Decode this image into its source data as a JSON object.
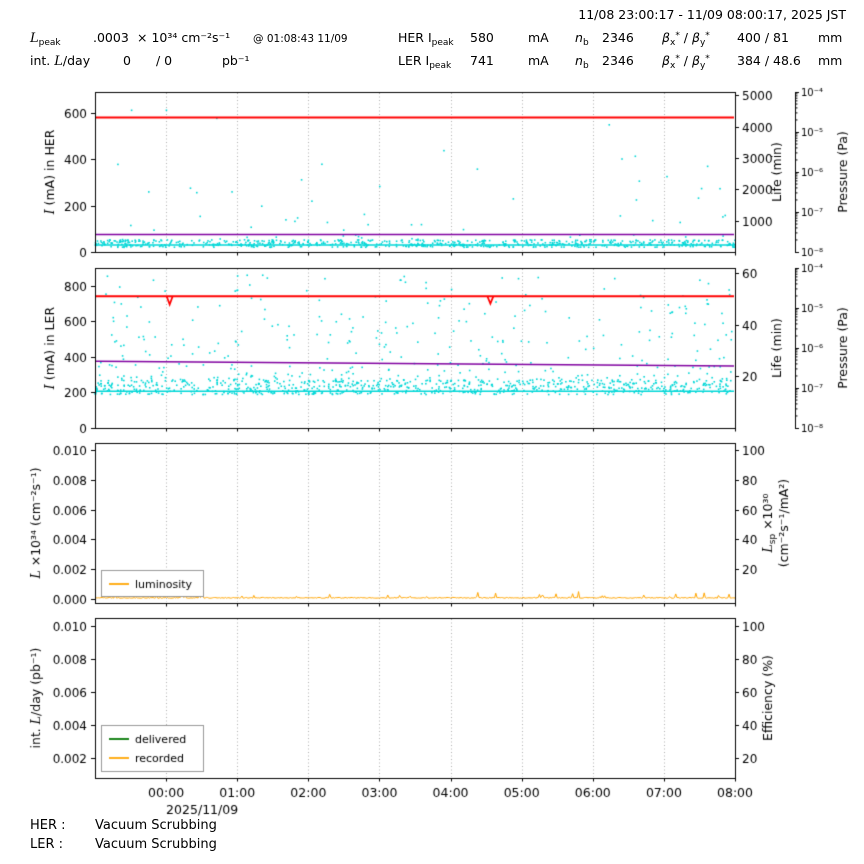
{
  "title": "11/08 23:00:17 - 11/09 08:00:17, 2025 JST",
  "header": {
    "script_l": "L",
    "sub_peak": "peak",
    "lpeak": {
      "value": ".0003",
      "unit": "× 10³⁴ cm⁻²s⁻¹",
      "at": "@ 01:08:43 11/09"
    },
    "intlum": {
      "label_pre": "int. ",
      "label_post": "/day",
      "value": "0",
      "value2": "/ 0",
      "unit": "pb⁻¹"
    },
    "nb_sym": "n",
    "sub_b": "b",
    "beta_sym": "β",
    "beta_x": "x",
    "beta_y": "y",
    "beta_star": "*",
    "beta_slash": " / ",
    "unit_ma": "mA",
    "unit_mm": "mm",
    "her": {
      "label": "HER I",
      "current": "580",
      "nb": "2346",
      "beta": "400 / 81"
    },
    "ler": {
      "label": "LER I",
      "current": "741",
      "nb": "2346",
      "beta": "384 / 48.6"
    }
  },
  "xaxis": {
    "ticks": [
      "00:00",
      "01:00",
      "02:00",
      "03:00",
      "04:00",
      "05:00",
      "06:00",
      "07:00",
      "08:00"
    ],
    "date_label": "2025/11/09",
    "t0_hours": -1,
    "t1_hours": 8
  },
  "chart_data": [
    {
      "type": "line+scatter",
      "name": "her-current-panel",
      "ylabel": [
        {
          "t": "I",
          "it": 1
        },
        {
          "t": " (mA) in HER"
        }
      ],
      "ylim": [
        0,
        690
      ],
      "ytick_vals": [
        0,
        200,
        400,
        600
      ],
      "ytick_labels": [
        "0",
        "200",
        "400",
        "600"
      ],
      "series": [
        {
          "kind": "scatter",
          "name": "HER life/pressure points",
          "color": "#00d7d7",
          "n": 750,
          "band": [
            20,
            52
          ],
          "outlier_frac": 0.1,
          "outlier_max": 620,
          "bias": 2.6,
          "seed": 11
        },
        {
          "kind": "hline",
          "name": "HER scatter baseline",
          "color": "#00d7d7",
          "value": 30,
          "width": 1.5
        },
        {
          "kind": "hline",
          "name": "HER lifetime line",
          "color": "#8000a0",
          "value": 76,
          "width": 1.5
        },
        {
          "kind": "hline",
          "name": "HER current 580 mA",
          "color": "#ff0000",
          "value": 580,
          "width": 1.8
        }
      ],
      "right1": {
        "label": [
          {
            "t": "Life (min)"
          }
        ],
        "lim": [
          0,
          5100
        ],
        "ticks": [
          1000,
          2000,
          3000,
          4000,
          5000
        ],
        "tick_labels": [
          "1000",
          "2000",
          "3000",
          "4000",
          "5000"
        ]
      },
      "right2": {
        "label": [
          {
            "t": "Pressure (Pa)"
          }
        ],
        "scale": "log",
        "decades": [
          "10⁻⁴",
          "10⁻⁵",
          "10⁻⁶",
          "10⁻⁷",
          "10⁻⁸"
        ]
      }
    },
    {
      "type": "line+scatter",
      "name": "ler-current-panel",
      "ylabel": [
        {
          "t": "I",
          "it": 1
        },
        {
          "t": " (mA) in LER"
        }
      ],
      "ylim": [
        0,
        900
      ],
      "ytick_vals": [
        0,
        200,
        400,
        600,
        800
      ],
      "ytick_labels": [
        "0",
        "200",
        "400",
        "600",
        "800"
      ],
      "series": [
        {
          "kind": "scatter",
          "name": "LER life/pressure points",
          "color": "#00d7d7",
          "n": 1100,
          "band": [
            188,
            268
          ],
          "outlier_frac": 0.32,
          "outlier_max": 860,
          "bias": 2,
          "seed": 22
        },
        {
          "kind": "hline",
          "name": "LER scatter baseline",
          "color": "#00d7d7",
          "value": 207,
          "width": 1.5
        },
        {
          "kind": "line",
          "name": "LER lifetime line",
          "color": "#8000a0",
          "from": 376,
          "to": 349,
          "width": 1.5
        },
        {
          "kind": "hline",
          "name": "LER current 741 mA",
          "color": "#ff0000",
          "value": 741,
          "width": 1.8,
          "dips": [
            [
              0.05,
              695
            ],
            [
              4.56,
              700
            ]
          ]
        }
      ],
      "right1": {
        "label": [
          {
            "t": "Life (min)"
          }
        ],
        "lim": [
          0,
          62
        ],
        "ticks": [
          20,
          40,
          60
        ],
        "tick_labels": [
          "20",
          "40",
          "60"
        ]
      },
      "right2": {
        "label": [
          {
            "t": "Pressure (Pa)"
          }
        ],
        "scale": "log",
        "decades": [
          "10⁻⁴",
          "10⁻⁵",
          "10⁻⁶",
          "10⁻⁷",
          "10⁻⁸"
        ]
      }
    },
    {
      "type": "line",
      "name": "luminosity-panel",
      "ylabel": [
        {
          "t": "L",
          "it": 1
        },
        {
          "t": " ×10³⁴ (cm⁻²s⁻¹)"
        }
      ],
      "ylim": [
        -0.0003,
        0.0105
      ],
      "ytick_vals": [
        0,
        0.002,
        0.004,
        0.006,
        0.008,
        0.01
      ],
      "ytick_labels": [
        "0.000",
        "0.002",
        "0.004",
        "0.006",
        "0.008",
        "0.010"
      ],
      "series": [
        {
          "kind": "spikes",
          "name": "luminosity",
          "color": "#ffa500",
          "base": 5e-05,
          "spike_frac": 0.1,
          "spike_max": 0.00042,
          "n": 540,
          "seed": 33
        }
      ],
      "legend": {
        "items": [
          {
            "label": "luminosity",
            "color": "#ffa500"
          }
        ]
      },
      "right1": {
        "label": [
          {
            "t": "L",
            "it": 1
          },
          {
            "t": "sp",
            "sub": 1
          },
          {
            "t": " ×10³⁰"
          }
        ],
        "label2": [
          {
            "t": "(cm⁻²s⁻¹/mA²)"
          }
        ],
        "lim": [
          -3,
          105
        ],
        "ticks": [
          20,
          40,
          60,
          80,
          100
        ],
        "tick_labels": [
          "20",
          "40",
          "60",
          "80",
          "100"
        ]
      }
    },
    {
      "type": "line",
      "name": "integrated-luminosity-panel",
      "ylabel": [
        {
          "t": "int. "
        },
        {
          "t": "L",
          "it": 1
        },
        {
          "t": "/day (pb⁻¹)"
        }
      ],
      "ylim": [
        0.0008,
        0.0105
      ],
      "ytick_vals": [
        0.002,
        0.004,
        0.006,
        0.008,
        0.01
      ],
      "ytick_labels": [
        "0.002",
        "0.004",
        "0.006",
        "0.008",
        "0.010"
      ],
      "series": [],
      "legend": {
        "items": [
          {
            "label": "delivered",
            "color": "#007700"
          },
          {
            "label": "recorded",
            "color": "#ffa500"
          }
        ]
      },
      "right1": {
        "label": [
          {
            "t": "Efficiency (%)"
          }
        ],
        "lim": [
          8,
          105
        ],
        "ticks": [
          20,
          40,
          60,
          80,
          100
        ],
        "tick_labels": [
          "20",
          "40",
          "60",
          "80",
          "100"
        ]
      }
    }
  ],
  "status": {
    "her_label": "HER :",
    "her": "Vacuum Scrubbing",
    "ler_label": "LER :",
    "ler": "Vacuum Scrubbing"
  }
}
